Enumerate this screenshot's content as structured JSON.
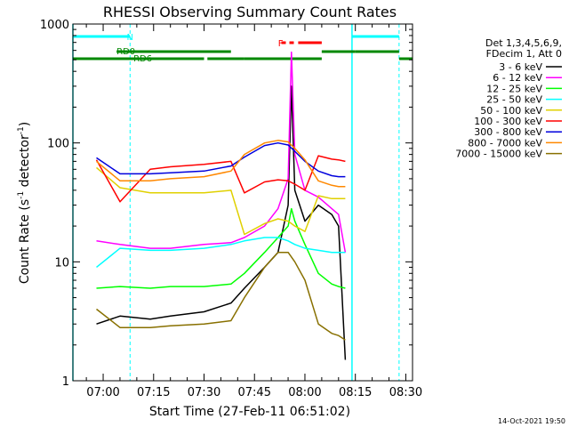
{
  "chart_data": {
    "type": "line",
    "title": "RHESSI Observing Summary Count Rates",
    "xlabel": "Start Time (27-Feb-11 06:51:02)",
    "ylabel_main": "Count Rate (s",
    "ylabel_exp1": "-1",
    "ylabel_mid": " detector",
    "ylabel_exp2": "-1",
    "ylabel_end": ")",
    "yscale": "log",
    "ylim": [
      1,
      1000
    ],
    "xlim": [
      "06:51:00",
      "08:32:00"
    ],
    "x_ticks": [
      "07:00",
      "07:15",
      "07:30",
      "07:45",
      "08:00",
      "08:15",
      "08:30"
    ],
    "y_ticks": [
      "1",
      "10",
      "100",
      "1000"
    ],
    "legend_header": [
      "Det 1,3,4,5,6,9,",
      "FDecim 1, Att 0"
    ],
    "series": [
      {
        "name": "3 - 6 keV",
        "color": "#000000",
        "points": [
          [
            "06:58",
            3
          ],
          [
            "07:05",
            3.5
          ],
          [
            "07:14",
            3.3
          ],
          [
            "07:20",
            3.5
          ],
          [
            "07:30",
            3.8
          ],
          [
            "07:38",
            4.5
          ],
          [
            "07:42",
            6
          ],
          [
            "07:48",
            9
          ],
          [
            "07:52",
            12
          ],
          [
            "07:55",
            30
          ],
          [
            "07:56",
            300
          ],
          [
            "07:57",
            40
          ],
          [
            "08:00",
            22
          ],
          [
            "08:04",
            30
          ],
          [
            "08:08",
            25
          ],
          [
            "08:10",
            20
          ],
          [
            "08:12",
            1.5
          ]
        ]
      },
      {
        "name": "6 - 12 keV",
        "color": "#ff00ff",
        "points": [
          [
            "06:58",
            15
          ],
          [
            "07:05",
            14
          ],
          [
            "07:14",
            13
          ],
          [
            "07:20",
            13
          ],
          [
            "07:30",
            14
          ],
          [
            "07:38",
            14.5
          ],
          [
            "07:42",
            16
          ],
          [
            "07:48",
            20
          ],
          [
            "07:52",
            28
          ],
          [
            "07:55",
            50
          ],
          [
            "07:56",
            580
          ],
          [
            "07:57",
            80
          ],
          [
            "08:00",
            40
          ],
          [
            "08:04",
            35
          ],
          [
            "08:08",
            28
          ],
          [
            "08:10",
            25
          ],
          [
            "08:12",
            12
          ]
        ]
      },
      {
        "name": "12 - 25 keV",
        "color": "#00ff00",
        "points": [
          [
            "06:58",
            6
          ],
          [
            "07:05",
            6.2
          ],
          [
            "07:14",
            6
          ],
          [
            "07:20",
            6.2
          ],
          [
            "07:30",
            6.2
          ],
          [
            "07:38",
            6.5
          ],
          [
            "07:42",
            8
          ],
          [
            "07:48",
            12
          ],
          [
            "07:52",
            16
          ],
          [
            "07:55",
            20
          ],
          [
            "07:56",
            28
          ],
          [
            "07:57",
            22
          ],
          [
            "08:00",
            14
          ],
          [
            "08:04",
            8
          ],
          [
            "08:08",
            6.5
          ],
          [
            "08:10",
            6.2
          ],
          [
            "08:12",
            6
          ]
        ]
      },
      {
        "name": "25 - 50 keV",
        "color": "#00ffff",
        "points": [
          [
            "06:58",
            9
          ],
          [
            "07:05",
            13
          ],
          [
            "07:14",
            12.5
          ],
          [
            "07:20",
            12.5
          ],
          [
            "07:30",
            13
          ],
          [
            "07:38",
            14
          ],
          [
            "07:42",
            15
          ],
          [
            "07:48",
            16
          ],
          [
            "07:52",
            16
          ],
          [
            "07:55",
            15
          ],
          [
            "07:57",
            14
          ],
          [
            "08:00",
            13
          ],
          [
            "08:04",
            12.5
          ],
          [
            "08:08",
            12
          ],
          [
            "08:10",
            12
          ],
          [
            "08:12",
            12
          ]
        ]
      },
      {
        "name": "50 - 100 keV",
        "color": "#e0d000",
        "points": [
          [
            "06:58",
            62
          ],
          [
            "07:05",
            42
          ],
          [
            "07:14",
            38
          ],
          [
            "07:20",
            38
          ],
          [
            "07:30",
            38
          ],
          [
            "07:38",
            40
          ],
          [
            "07:42",
            17
          ],
          [
            "07:48",
            21
          ],
          [
            "07:52",
            23
          ],
          [
            "07:55",
            22
          ],
          [
            "07:57",
            20
          ],
          [
            "08:00",
            18
          ],
          [
            "08:04",
            36
          ],
          [
            "08:08",
            34
          ],
          [
            "08:10",
            34
          ],
          [
            "08:12",
            34
          ]
        ]
      },
      {
        "name": "100 - 300 keV",
        "color": "#ff0000",
        "points": [
          [
            "06:58",
            72
          ],
          [
            "07:05",
            32
          ],
          [
            "07:14",
            60
          ],
          [
            "07:20",
            63
          ],
          [
            "07:30",
            66
          ],
          [
            "07:38",
            70
          ],
          [
            "07:42",
            38
          ],
          [
            "07:48",
            47
          ],
          [
            "07:52",
            49
          ],
          [
            "07:55",
            48
          ],
          [
            "07:57",
            45
          ],
          [
            "08:00",
            40
          ],
          [
            "08:04",
            78
          ],
          [
            "08:08",
            73
          ],
          [
            "08:10",
            72
          ],
          [
            "08:12",
            70
          ]
        ]
      },
      {
        "name": "300 - 800 keV",
        "color": "#0000dd",
        "points": [
          [
            "06:58",
            75
          ],
          [
            "07:05",
            55
          ],
          [
            "07:14",
            55
          ],
          [
            "07:20",
            56
          ],
          [
            "07:30",
            58
          ],
          [
            "07:38",
            64
          ],
          [
            "07:42",
            76
          ],
          [
            "07:48",
            95
          ],
          [
            "07:52",
            100
          ],
          [
            "07:55",
            96
          ],
          [
            "07:57",
            85
          ],
          [
            "08:00",
            70
          ],
          [
            "08:04",
            58
          ],
          [
            "08:08",
            53
          ],
          [
            "08:10",
            52
          ],
          [
            "08:12",
            52
          ]
        ]
      },
      {
        "name": "800 - 7000 keV",
        "color": "#ff8800",
        "points": [
          [
            "06:58",
            70
          ],
          [
            "07:05",
            48
          ],
          [
            "07:14",
            48
          ],
          [
            "07:20",
            50
          ],
          [
            "07:30",
            52
          ],
          [
            "07:38",
            58
          ],
          [
            "07:42",
            80
          ],
          [
            "07:48",
            100
          ],
          [
            "07:52",
            105
          ],
          [
            "07:55",
            102
          ],
          [
            "07:57",
            90
          ],
          [
            "08:00",
            72
          ],
          [
            "08:04",
            48
          ],
          [
            "08:08",
            44
          ],
          [
            "08:10",
            43
          ],
          [
            "08:12",
            43
          ]
        ]
      },
      {
        "name": "7000 - 15000 keV",
        "color": "#887000",
        "points": [
          [
            "06:58",
            4
          ],
          [
            "07:05",
            2.8
          ],
          [
            "07:14",
            2.8
          ],
          [
            "07:20",
            2.9
          ],
          [
            "07:30",
            3
          ],
          [
            "07:38",
            3.2
          ],
          [
            "07:42",
            5
          ],
          [
            "07:48",
            9
          ],
          [
            "07:52",
            12
          ],
          [
            "07:55",
            12
          ],
          [
            "07:57",
            10
          ],
          [
            "08:00",
            7
          ],
          [
            "08:04",
            3
          ],
          [
            "08:08",
            2.5
          ],
          [
            "08:10",
            2.4
          ],
          [
            "08:12",
            2.2
          ]
        ]
      }
    ],
    "annotations": {
      "night_label": "N",
      "flare_label": "F",
      "rd0_label": "RD0",
      "rd6_label": "RD6"
    },
    "grid": false,
    "legend_placement": "right"
  },
  "footer": {
    "timestamp": "14-Oct-2021 19:50"
  },
  "colors": {
    "background": "#ffffff",
    "axes": "#000000",
    "night": "#00ffff",
    "flare": "#ff0000",
    "decimation": "#008800"
  }
}
